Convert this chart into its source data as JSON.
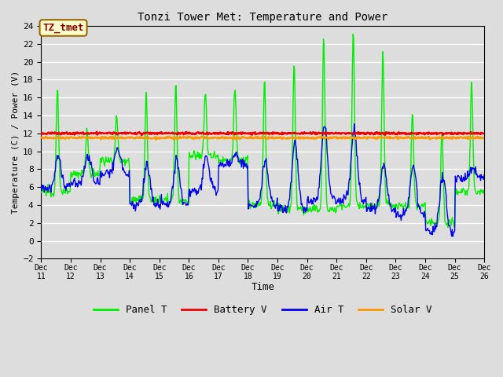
{
  "title": "Tonzi Tower Met: Temperature and Power",
  "xlabel": "Time",
  "ylabel": "Temperature (C) / Power (V)",
  "ylim": [
    -2,
    24
  ],
  "yticks": [
    -2,
    0,
    2,
    4,
    6,
    8,
    10,
    12,
    14,
    16,
    18,
    20,
    22,
    24
  ],
  "xlim_start": 11,
  "xlim_end": 26,
  "xtick_labels": [
    "Dec 11",
    "Dec 12",
    "Dec 13",
    "Dec 14",
    "Dec 15",
    "Dec 16",
    "Dec 17",
    "Dec 18",
    "Dec 19",
    "Dec 20",
    "Dec 21",
    "Dec 22",
    "Dec 23",
    "Dec 24",
    "Dec 25",
    "Dec 26"
  ],
  "annotation_text": "TZ_tmet",
  "annotation_box_color": "#FFFFCC",
  "annotation_text_color": "#880000",
  "annotation_border_color": "#996600",
  "panel_color": "#00EE00",
  "battery_color": "#EE0000",
  "air_color": "#0000EE",
  "solar_color": "#FF9900",
  "background_color": "#DDDDDD",
  "plot_bg_color": "#DDDDDD",
  "grid_color": "#FFFFFF",
  "legend_labels": [
    "Panel T",
    "Battery V",
    "Air T",
    "Solar V"
  ],
  "panel_peaks": [
    17.0,
    12.5,
    13.8,
    16.7,
    17.5,
    16.6,
    17.2,
    18.0,
    20.0,
    22.6,
    23.5,
    21.0,
    14.5,
    12.0,
    17.8,
    7.0
  ],
  "panel_lows": [
    5.5,
    7.5,
    9.0,
    4.5,
    4.5,
    9.5,
    9.0,
    4.0,
    3.5,
    3.5,
    4.0,
    4.0,
    4.0,
    2.0,
    5.5,
    6.0
  ],
  "air_peaks": [
    9.5,
    9.5,
    10.5,
    8.5,
    9.0,
    9.5,
    9.5,
    9.0,
    11.0,
    13.0,
    12.5,
    8.5,
    8.5,
    7.5,
    8.0,
    7.5
  ],
  "air_lows": [
    5.8,
    6.5,
    7.5,
    4.0,
    4.0,
    5.5,
    8.5,
    4.0,
    3.5,
    4.5,
    4.5,
    3.5,
    3.0,
    1.0,
    7.0,
    6.5
  ],
  "battery_mean": 12.0,
  "solar_mean": 11.5,
  "n_pts_per_day": 48
}
